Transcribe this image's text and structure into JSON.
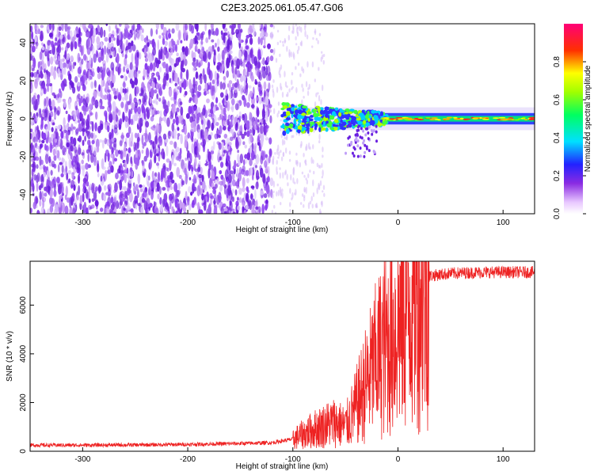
{
  "title": "C2E3.2025.061.05.47.G06",
  "colors": {
    "snr_line": "#ee2222",
    "frame": "#000000",
    "spectrogram_bg": "#ffffff"
  },
  "chart_data": [
    {
      "type": "heatmap",
      "xlabel": "Height of straight line (km)",
      "ylabel": "Frequency (Hz)",
      "xlim": [
        -350,
        130
      ],
      "ylim": [
        -50,
        50
      ],
      "x_ticks": [
        -300,
        -200,
        -100,
        0,
        100
      ],
      "y_ticks": [
        -40,
        -20,
        0,
        20,
        40
      ],
      "colorbar": {
        "label": "Normalized spectral amplitude",
        "range": [
          0,
          1
        ],
        "ticks": [
          "0.0",
          "0.2",
          "0.4",
          "0.6",
          "0.8"
        ],
        "colormap": "rainbow (white-violet-blue-cyan-green-yellow-red-magenta)"
      },
      "description_features": {
        "noise_region_x": [
          -350,
          -120
        ],
        "sparse_noise_x": [
          -120,
          -70
        ],
        "signal_center_hz": 0,
        "signal_spread_hz_start": 10,
        "signal_spread_hz_end": 3,
        "peak_x": -15
      }
    },
    {
      "type": "line",
      "xlabel": "Height of straight line (km)",
      "ylabel": "SNR (10 * v/v)",
      "xlim": [
        -350,
        130
      ],
      "ylim": [
        0,
        7800
      ],
      "x_ticks": [
        -300,
        -200,
        -100,
        0,
        100
      ],
      "y_ticks": [
        0,
        2000,
        4000,
        6000
      ],
      "series": [
        {
          "values_summary": [
            [
              -350,
              250
            ],
            [
              -300,
              250
            ],
            [
              -250,
              260
            ],
            [
              -200,
              280
            ],
            [
              -150,
              320
            ],
            [
              -120,
              350
            ],
            [
              -100,
              500
            ],
            [
              -80,
              900
            ],
            [
              -60,
              1200
            ],
            [
              -50,
              1000
            ],
            [
              -40,
              1800
            ],
            [
              -30,
              2800
            ],
            [
              -20,
              3800
            ],
            [
              -10,
              4500
            ],
            [
              0,
              5200
            ],
            [
              10,
              6200
            ],
            [
              20,
              6800
            ],
            [
              30,
              7200
            ],
            [
              50,
              7300
            ],
            [
              80,
              7350
            ],
            [
              100,
              7350
            ],
            [
              130,
              7350
            ]
          ]
        }
      ]
    }
  ]
}
